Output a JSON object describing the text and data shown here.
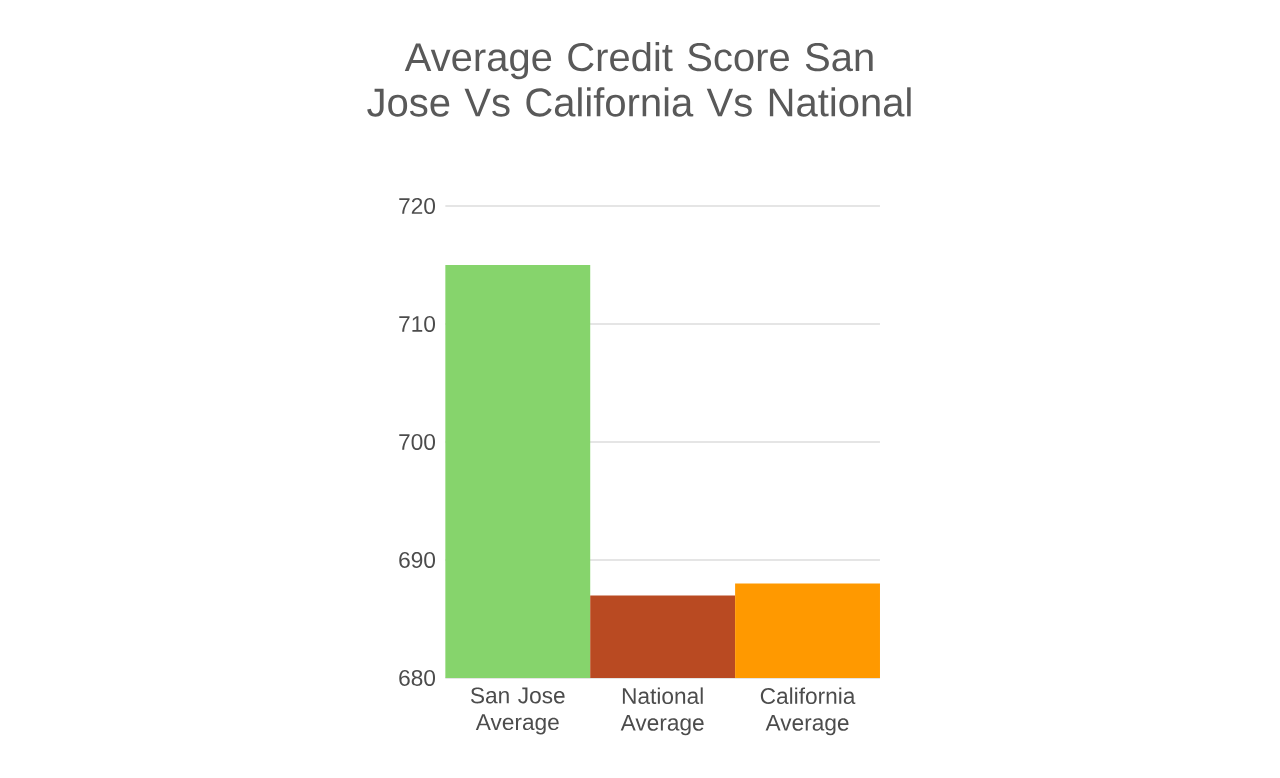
{
  "chart_data": {
    "type": "bar",
    "title": "Average Credit Score San Jose Vs California Vs National",
    "categories": [
      "San Jose Average",
      "National Average",
      "California Average"
    ],
    "values": [
      715,
      687,
      688
    ],
    "colors": [
      "#86d46c",
      "#b94a22",
      "#ff9900"
    ],
    "ylim": [
      680,
      720
    ],
    "yticks": [
      680,
      690,
      700,
      710,
      720
    ],
    "grid": "y"
  }
}
